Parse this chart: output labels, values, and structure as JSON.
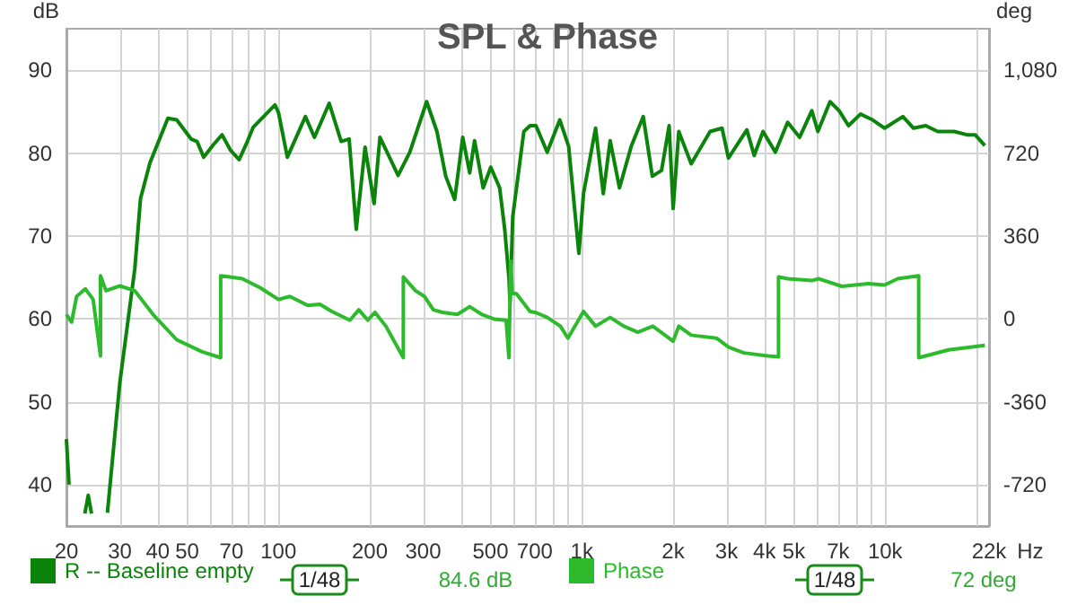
{
  "chart_data": {
    "type": "line",
    "title": "SPL & Phase",
    "ylabel": "dB",
    "y2label": "deg",
    "log": "x",
    "grid": true,
    "legend": "bottom",
    "xlim": [
      20,
      22000
    ],
    "xticks": [
      20,
      30,
      40,
      50,
      {
        "value": 60,
        "label": null
      },
      70,
      {
        "value": 80,
        "label": null
      },
      {
        "value": 90,
        "label": null
      },
      100,
      200,
      300,
      {
        "value": 400,
        "label": null
      },
      500,
      {
        "value": 600,
        "label": null
      },
      700,
      {
        "value": 800,
        "label": null
      },
      {
        "value": 900,
        "label": null
      },
      {
        "value": 1000,
        "label": "1k"
      },
      {
        "value": 2000,
        "label": "2k"
      },
      {
        "value": 3000,
        "label": "3k"
      },
      {
        "value": 4000,
        "label": "4k"
      },
      {
        "value": 5000,
        "label": "5k"
      },
      {
        "value": 6000,
        "label": null
      },
      {
        "value": 7000,
        "label": "7k"
      },
      {
        "value": 8000,
        "label": null
      },
      {
        "value": 9000,
        "label": null
      },
      {
        "value": 10000,
        "label": "10k"
      },
      {
        "value": 20000,
        "label": null
      },
      {
        "value": 22000,
        "label": "22k"
      }
    ],
    "xlabel": "Hz",
    "ylim": [
      35,
      95
    ],
    "yticks": [
      40,
      50,
      60,
      70,
      80,
      90
    ],
    "y2lim": [
      -900,
      1260
    ],
    "y2ticks": [
      -720,
      -360,
      0,
      360,
      720,
      {
        "value": 1080,
        "label": "1,080"
      }
    ],
    "annotations": [
      "1/48",
      "84.6 dB",
      "1/48",
      "72 deg"
    ],
    "series": [
      {
        "name": "R -- Baseline empty",
        "color": "#0b840b",
        "x": [
          20,
          20.4,
          20.9,
          23,
          23.6,
          24.2,
          25,
          26.1,
          27.3,
          30,
          33.6,
          35.1,
          37.7,
          43.2,
          46.2,
          51.5,
          53.9,
          56.7,
          61,
          65.2,
          69.6,
          74.2,
          79,
          82.5,
          97.4,
          100,
          107,
          122.7,
          131.4,
          147,
          161,
          171,
          180.5,
          193,
          206.7,
          216,
          248,
          271,
          308,
          333,
          356,
          381,
          405,
          427,
          443,
          473,
          501,
          536,
          557,
          575,
          580,
          592,
          644,
          675,
          706,
          769,
          846,
          905,
          978,
          1013,
          1110,
          1177,
          1240,
          1331,
          1455,
          1594,
          1708,
          1832,
          1940,
          2000,
          2088,
          2294,
          2648,
          2900,
          3043,
          3500,
          3700,
          3957,
          4345,
          4770,
          5225,
          5730,
          6000,
          6580,
          7050,
          7570,
          8290,
          9090,
          9960,
          11440,
          12400,
          13600,
          14900,
          16900,
          18600,
          19800,
          21300
        ],
        "values": [
          45.5,
          40,
          null,
          36.5,
          38.7,
          36.5,
          null,
          null,
          36.6,
          52.3,
          66,
          74.5,
          78.8,
          84.2,
          84,
          81.7,
          81.4,
          79.5,
          81,
          82.2,
          80.3,
          79.2,
          81.4,
          83.1,
          85.8,
          84.9,
          79.5,
          84.4,
          81.9,
          86,
          81.4,
          81.7,
          70.8,
          80.7,
          73.9,
          81.9,
          77.3,
          80.1,
          86.2,
          82.6,
          77.2,
          74.4,
          81.9,
          77.6,
          81.5,
          75.8,
          78.3,
          75.8,
          70.8,
          65,
          62,
          72.3,
          82.6,
          83.3,
          83.3,
          80.1,
          84,
          80.8,
          67.9,
          75.1,
          83,
          75.1,
          81.5,
          75.8,
          80.8,
          84.4,
          77.2,
          77.9,
          83.3,
          73.3,
          82.6,
          78.7,
          82.6,
          83,
          79.4,
          82.8,
          79.7,
          82.6,
          80.1,
          83.7,
          81.9,
          85.1,
          82.6,
          86.2,
          85.1,
          83.3,
          84.7,
          84,
          83,
          84.4,
          83,
          83.3,
          82.6,
          82.6,
          82.2,
          82.2,
          80.9
        ]
      },
      {
        "name": "Phase",
        "color": "#2dbb2d",
        "axis": "y2",
        "x": [
          20,
          20.8,
          21.6,
          23.1,
          24.5,
          25.9,
          25.9,
          27,
          30,
          33.6,
          38.6,
          46.2,
          56,
          64.5,
          64.5,
          76,
          87,
          100,
          109,
          125,
          137,
          150,
          172,
          184,
          197,
          208,
          226,
          258,
          258,
          283,
          303,
          324,
          347,
          389,
          427,
          468,
          514,
          563,
          575,
          583,
          590,
          608,
          675,
          706,
          769,
          850,
          900,
          1013,
          1110,
          1240,
          1375,
          1530,
          1715,
          2000,
          2088,
          2294,
          2780,
          3043,
          3420,
          4100,
          4450,
          4450,
          4770,
          5730,
          6050,
          7200,
          8800,
          9960,
          11000,
          12900,
          12900,
          16200,
          21300
        ],
        "values": [
          19,
          -14,
          97,
          130,
          84,
          -161,
          187,
          122,
          143,
          122,
          19,
          -91,
          -143,
          -169,
          187,
          174,
          135,
          84,
          97,
          58,
          63,
          32,
          -6,
          39,
          -6,
          28,
          -32,
          -169,
          182,
          122,
          97,
          39,
          28,
          19,
          53,
          19,
          -1,
          -6,
          -169,
          250,
          110,
          110,
          32,
          27,
          6,
          -32,
          -84,
          32,
          -32,
          6,
          -32,
          -58,
          -32,
          -97,
          -32,
          -71,
          -84,
          -123,
          -148,
          -161,
          -165,
          182,
          174,
          166,
          174,
          141,
          153,
          147,
          174,
          187,
          -169,
          -135,
          -115
        ]
      }
    ]
  }
}
